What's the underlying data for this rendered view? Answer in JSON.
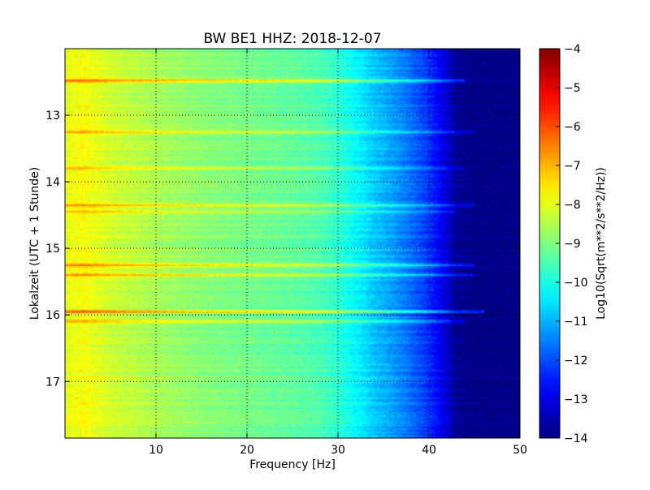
{
  "chart_data": {
    "type": "heatmap",
    "title": "BW BE1 HHZ: 2018-12-07",
    "xlabel": "Frequency [Hz]",
    "ylabel": "Lokalzeit (UTC + 1 Stunde)",
    "xlim": [
      0,
      50
    ],
    "ylim": [
      12.0,
      17.85
    ],
    "x_ticks": [
      "10",
      "20",
      "30",
      "40",
      "50"
    ],
    "x_tick_values": [
      10,
      20,
      30,
      40,
      50
    ],
    "y_ticks": [
      "13",
      "14",
      "15",
      "16",
      "17"
    ],
    "y_tick_values": [
      13,
      14,
      15,
      16,
      17
    ],
    "grid": true,
    "colorbar": {
      "label": "Log10(Sqrt(m**2/s**2/Hz))",
      "range": [
        -14,
        -4
      ],
      "ticks": [
        "−4",
        "−5",
        "−6",
        "−7",
        "−8",
        "−9",
        "−10",
        "−11",
        "−12",
        "−13",
        "−14"
      ],
      "tick_values": [
        -4,
        -5,
        -6,
        -7,
        -8,
        -9,
        -10,
        -11,
        -12,
        -13,
        -14
      ],
      "colormap": "jet"
    },
    "spectral_profile": {
      "frequency_hz": [
        0,
        2,
        5,
        10,
        15,
        20,
        25,
        28,
        30,
        32,
        34,
        36,
        38,
        40,
        42,
        43,
        45,
        50
      ],
      "level": [
        -8.0,
        -7.8,
        -8.2,
        -8.6,
        -8.9,
        -9.1,
        -9.3,
        -9.5,
        -9.8,
        -10.3,
        -10.8,
        -11.2,
        -11.7,
        -12.3,
        -13.2,
        -13.8,
        -14,
        -14
      ]
    },
    "noise_bands": [
      {
        "time": 12.48,
        "fmax": 44,
        "strength": 1.6
      },
      {
        "time": 13.25,
        "fmax": 45,
        "strength": 1.2
      },
      {
        "time": 13.8,
        "fmax": 44,
        "strength": 0.9
      },
      {
        "time": 14.35,
        "fmax": 45,
        "strength": 1.5
      },
      {
        "time": 14.45,
        "fmax": 43,
        "strength": 1.1
      },
      {
        "time": 15.25,
        "fmax": 45,
        "strength": 1.8
      },
      {
        "time": 15.4,
        "fmax": 45,
        "strength": 1.4
      },
      {
        "time": 15.95,
        "fmax": 46,
        "strength": 2.4
      },
      {
        "time": 16.1,
        "fmax": 44,
        "strength": 1.3
      }
    ]
  }
}
